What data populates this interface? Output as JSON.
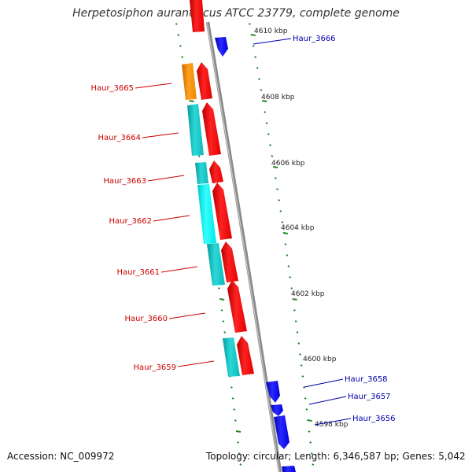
{
  "title": "Herpetosiphon aurantiacus ATCC 23779, complete genome",
  "footer": {
    "accession": "Accession: NC_009972",
    "summary": "Topology: circular; Length: 6,346,587 bp; Genes: 5,042"
  },
  "colors": {
    "forward_label": "#cc0000",
    "reverse_label": "#0000aa",
    "backbone": "#888888",
    "tick": "#228822",
    "gene_red": "#ff1a1a",
    "gene_blue": "#1a1aff",
    "gene_cyan": "#1ecaca",
    "gene_cyan_bright": "#18ffff",
    "gene_orange": "#ff9900"
  },
  "scale": {
    "unit": "kbp",
    "ticks": [
      "4610 kbp",
      "4608 kbp",
      "4606 kbp",
      "4604 kbp",
      "4602 kbp",
      "4600 kbp",
      "4598 kbp"
    ]
  },
  "gene_labels": {
    "forward": [
      "Haur_3665",
      "Haur_3664",
      "Haur_3663",
      "Haur_3662",
      "Haur_3661",
      "Haur_3660",
      "Haur_3659"
    ],
    "reverse": [
      "Haur_3666",
      "Haur_3658",
      "Haur_3657",
      "Haur_3656"
    ]
  }
}
